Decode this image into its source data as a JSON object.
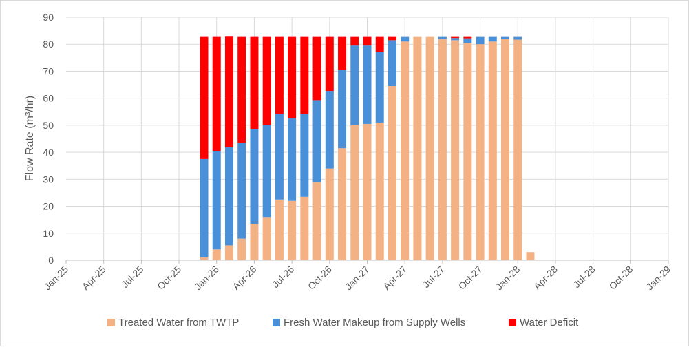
{
  "chart_data": {
    "type": "bar",
    "stacked": true,
    "title": "",
    "xlabel": "",
    "ylabel": "Flow Rate (m³/hr)",
    "ylim": [
      0,
      90
    ],
    "yticks": [
      0,
      10,
      20,
      30,
      40,
      50,
      60,
      70,
      80,
      90
    ],
    "grid": true,
    "legend_position": "bottom",
    "x_tick_labels": [
      "Jan-25",
      "Apr-25",
      "Jul-25",
      "Oct-25",
      "Jan-26",
      "Apr-26",
      "Jul-26",
      "Oct-26",
      "Jan-27",
      "Apr-27",
      "Jul-27",
      "Oct-27",
      "Jan-28",
      "Apr-28",
      "Jul-28",
      "Oct-28",
      "Jan-29"
    ],
    "categories": [
      "Dec-25",
      "Jan-26",
      "Feb-26",
      "Mar-26",
      "Apr-26",
      "May-26",
      "Jun-26",
      "Jul-26",
      "Aug-26",
      "Sep-26",
      "Oct-26",
      "Nov-26",
      "Dec-26",
      "Jan-27",
      "Feb-27",
      "Mar-27",
      "Apr-27",
      "May-27",
      "Jun-27",
      "Jul-27",
      "Aug-27",
      "Sep-27",
      "Oct-27",
      "Nov-27",
      "Dec-27",
      "Jan-28",
      "Feb-28"
    ],
    "series": [
      {
        "name": "Treated Water from TWTP",
        "color": "#f4b183",
        "values": [
          1,
          4,
          5.5,
          8,
          13.5,
          16,
          22.5,
          22,
          23.5,
          29,
          34,
          41.5,
          50,
          50.5,
          51,
          64.5,
          81,
          82.7,
          82.7,
          82,
          81.5,
          80.5,
          80,
          81,
          82,
          81.7,
          3
        ]
      },
      {
        "name": "Fresh Water Makeup from Supply Wells",
        "color": "#4a90d9",
        "values": [
          36.5,
          36.5,
          36.3,
          35.6,
          35,
          34,
          31.8,
          30.5,
          30.8,
          30.3,
          28.7,
          29,
          29.5,
          29,
          26,
          17,
          1.7,
          0,
          0,
          0.7,
          0.8,
          1.7,
          2.7,
          1.7,
          0.7,
          1,
          0
        ]
      },
      {
        "name": "Water Deficit",
        "color": "#ff0000",
        "values": [
          45.2,
          42.2,
          41,
          39.1,
          34.2,
          32.7,
          28.4,
          30.2,
          28.4,
          23.4,
          20,
          12.2,
          3.2,
          3.2,
          5.7,
          1.2,
          0,
          0,
          0,
          0,
          0.4,
          0.5,
          0,
          0,
          0,
          0,
          0
        ]
      }
    ]
  }
}
